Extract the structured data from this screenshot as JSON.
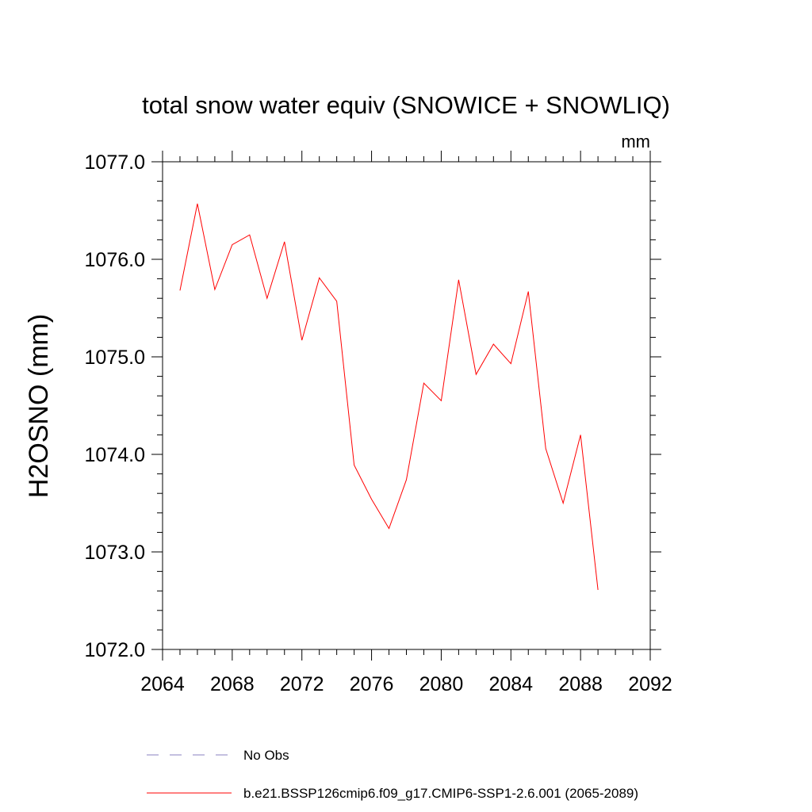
{
  "chart_data": {
    "type": "line",
    "title": "total snow water equiv (SNOWICE + SNOWLIQ)",
    "units": "mm",
    "xlabel": "",
    "ylabel": "H2OSNO  (mm)",
    "xlim": [
      2064,
      2092
    ],
    "ylim": [
      1072.0,
      1077.0
    ],
    "x_ticks": [
      "2064",
      "2068",
      "2072",
      "2076",
      "2080",
      "2084",
      "2088",
      "2092"
    ],
    "y_ticks": [
      "1072.0",
      "1073.0",
      "1074.0",
      "1075.0",
      "1076.0",
      "1077.0"
    ],
    "grid": false,
    "legend_placement": "bottom",
    "x": [
      2065,
      2066,
      2067,
      2068,
      2069,
      2070,
      2071,
      2072,
      2073,
      2074,
      2075,
      2076,
      2077,
      2078,
      2079,
      2080,
      2081,
      2082,
      2083,
      2084,
      2085,
      2086,
      2087,
      2088,
      2089
    ],
    "series": [
      {
        "name": "b.e21.BSSP126cmip6.f09_g17.CMIP6-SSP1-2.6.001 (2065-2089)",
        "color": "#ff0000",
        "values": [
          1075.68,
          1076.57,
          1075.69,
          1076.15,
          1076.25,
          1075.6,
          1076.18,
          1075.17,
          1075.81,
          1075.57,
          1073.89,
          1073.54,
          1073.24,
          1073.74,
          1074.73,
          1074.55,
          1075.79,
          1074.82,
          1075.13,
          1074.93,
          1075.67,
          1074.06,
          1073.5,
          1074.2,
          1072.61
        ]
      }
    ],
    "legend": [
      {
        "label": "No Obs",
        "color": "#8a80c0",
        "style": "dashed"
      },
      {
        "label": "b.e21.BSSP126cmip6.f09_g17.CMIP6-SSP1-2.6.001 (2065-2089)",
        "color": "#ff0000",
        "style": "solid"
      }
    ]
  }
}
